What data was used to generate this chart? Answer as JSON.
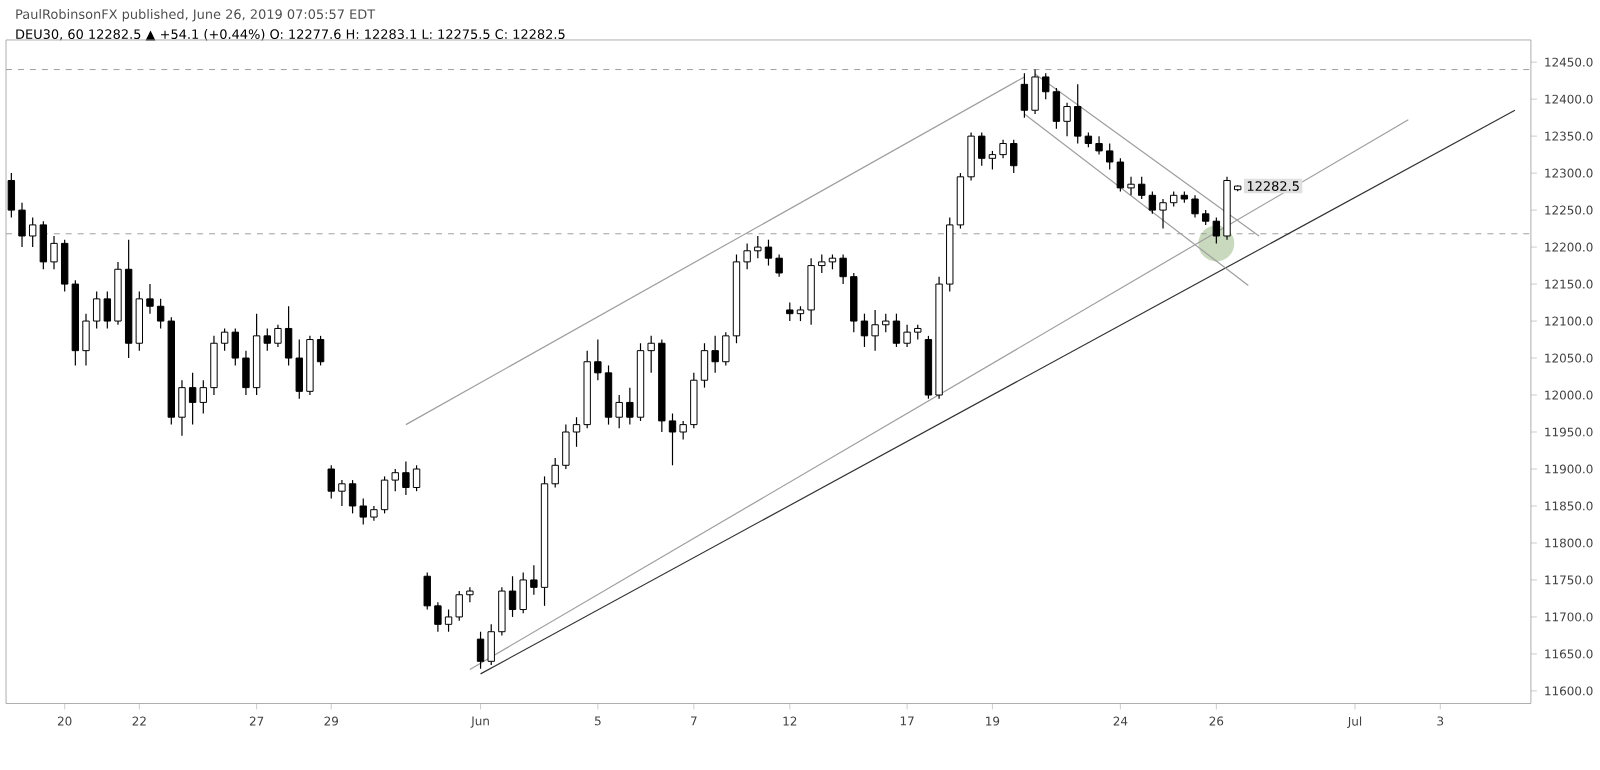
{
  "chart_data": {
    "type": "candlestick",
    "title": "PaulRobinsonFX published, June 26, 2019 07:05:57 EDT",
    "subtitle": "DEU30, 60  12282.5 ▲ +54.1 (+0.44%) O: 12277.6 H: 12283.1 L: 12275.5 C: 12282.5",
    "categories": [
      null,
      null,
      null,
      null,
      null,
      "20",
      null,
      null,
      null,
      null,
      null,
      null,
      "22",
      null,
      null,
      null,
      null,
      null,
      null,
      null,
      null,
      null,
      null,
      "27",
      null,
      null,
      null,
      null,
      null,
      null,
      "29",
      null,
      null,
      null,
      null,
      null,
      null,
      null,
      null,
      null,
      null,
      null,
      null,
      null,
      "Jun",
      null,
      null,
      null,
      null,
      null,
      null,
      null,
      null,
      null,
      null,
      "5",
      null,
      null,
      null,
      null,
      null,
      null,
      null,
      null,
      "7",
      null,
      null,
      null,
      null,
      null,
      null,
      null,
      null,
      "12",
      null,
      null,
      null,
      null,
      null,
      null,
      null,
      null,
      null,
      null,
      "17",
      null,
      null,
      null,
      null,
      null,
      null,
      null,
      "19",
      null,
      null,
      null,
      null,
      null,
      null,
      null,
      null,
      null,
      null,
      null,
      "24",
      null,
      null,
      null,
      null,
      null,
      null,
      null,
      null,
      "26",
      null,
      null,
      null,
      null,
      null,
      null,
      null,
      null,
      null,
      null,
      null,
      null,
      "Jul",
      null,
      null,
      null,
      null,
      null,
      null,
      null,
      "3",
      null,
      null,
      null,
      null,
      null,
      null,
      null,
      null
    ],
    "ohlc": [
      [
        12290,
        12300,
        12240,
        12250
      ],
      [
        12250,
        12260,
        12200,
        12215
      ],
      [
        12215,
        12240,
        12200,
        12230
      ],
      [
        12230,
        12235,
        12170,
        12180
      ],
      [
        12180,
        12215,
        12170,
        12205
      ],
      [
        12205,
        12210,
        12140,
        12150
      ],
      [
        12150,
        12155,
        12040,
        12060
      ],
      [
        12060,
        12110,
        12040,
        12100
      ],
      [
        12100,
        12140,
        12090,
        12130
      ],
      [
        12130,
        12140,
        12090,
        12100
      ],
      [
        12100,
        12180,
        12095,
        12170
      ],
      [
        12170,
        12210,
        12050,
        12070
      ],
      [
        12070,
        12140,
        12060,
        12130
      ],
      [
        12130,
        12150,
        12110,
        12120
      ],
      [
        12120,
        12130,
        12090,
        12100
      ],
      [
        12100,
        12105,
        11960,
        11970
      ],
      [
        11970,
        12020,
        11945,
        12010
      ],
      [
        12010,
        12030,
        11960,
        11990
      ],
      [
        11990,
        12020,
        11975,
        12010
      ],
      [
        12010,
        12080,
        12000,
        12070
      ],
      [
        12070,
        12090,
        12060,
        12085
      ],
      [
        12085,
        12090,
        12040,
        12050
      ],
      [
        12050,
        12060,
        12000,
        12010
      ],
      [
        12010,
        12110,
        12000,
        12080
      ],
      [
        12080,
        12090,
        12060,
        12070
      ],
      [
        12070,
        12095,
        12065,
        12090
      ],
      [
        12090,
        12120,
        12040,
        12050
      ],
      [
        12050,
        12075,
        11995,
        12005
      ],
      [
        12005,
        12080,
        12000,
        12075
      ],
      [
        12075,
        12080,
        12040,
        12045
      ],
      [
        11900,
        11905,
        11860,
        11870
      ],
      [
        11870,
        11885,
        11850,
        11880
      ],
      [
        11880,
        11885,
        11840,
        11850
      ],
      [
        11850,
        11860,
        11825,
        11835
      ],
      [
        11835,
        11850,
        11830,
        11845
      ],
      [
        11845,
        11890,
        11840,
        11885
      ],
      [
        11885,
        11900,
        11870,
        11895
      ],
      [
        11895,
        11910,
        11865,
        11875
      ],
      [
        11875,
        11905,
        11870,
        11900
      ],
      [
        11755,
        11760,
        11710,
        11715
      ],
      [
        11715,
        11720,
        11680,
        11690
      ],
      [
        11690,
        11710,
        11680,
        11700
      ],
      [
        11700,
        11735,
        11695,
        11730
      ],
      [
        11730,
        11740,
        11720,
        11735
      ],
      [
        11670,
        11680,
        11630,
        11640
      ],
      [
        11640,
        11690,
        11635,
        11680
      ],
      [
        11680,
        11740,
        11675,
        11735
      ],
      [
        11735,
        11755,
        11700,
        11710
      ],
      [
        11710,
        11760,
        11705,
        11750
      ],
      [
        11750,
        11770,
        11730,
        11740
      ],
      [
        11740,
        11890,
        11715,
        11880
      ],
      [
        11880,
        11915,
        11875,
        11905
      ],
      [
        11905,
        11960,
        11900,
        11950
      ],
      [
        11950,
        11970,
        11930,
        11960
      ],
      [
        11960,
        12060,
        11955,
        12045
      ],
      [
        12045,
        12075,
        12020,
        12030
      ],
      [
        12030,
        12040,
        11960,
        11970
      ],
      [
        11970,
        12000,
        11955,
        11990
      ],
      [
        11990,
        12010,
        11960,
        11970
      ],
      [
        11970,
        12070,
        11965,
        12060
      ],
      [
        12060,
        12080,
        12030,
        12070
      ],
      [
        12070,
        12075,
        11950,
        11965
      ],
      [
        11965,
        11975,
        11905,
        11950
      ],
      [
        11950,
        11965,
        11940,
        11960
      ],
      [
        11960,
        12030,
        11955,
        12020
      ],
      [
        12020,
        12070,
        12010,
        12060
      ],
      [
        12060,
        12080,
        12030,
        12045
      ],
      [
        12045,
        12085,
        12040,
        12080
      ],
      [
        12080,
        12190,
        12070,
        12180
      ],
      [
        12180,
        12205,
        12170,
        12195
      ],
      [
        12195,
        12215,
        12185,
        12200
      ],
      [
        12200,
        12210,
        12175,
        12185
      ],
      [
        12185,
        12190,
        12160,
        12165
      ],
      [
        12115,
        12125,
        12100,
        12110
      ],
      [
        12110,
        12120,
        12100,
        12115
      ],
      [
        12115,
        12185,
        12095,
        12175
      ],
      [
        12175,
        12190,
        12165,
        12180
      ],
      [
        12180,
        12190,
        12170,
        12185
      ],
      [
        12185,
        12190,
        12150,
        12160
      ],
      [
        12160,
        12165,
        12085,
        12100
      ],
      [
        12100,
        12110,
        12065,
        12080
      ],
      [
        12080,
        12115,
        12060,
        12095
      ],
      [
        12095,
        12110,
        12085,
        12100
      ],
      [
        12100,
        12110,
        12065,
        12070
      ],
      [
        12070,
        12095,
        12065,
        12085
      ],
      [
        12085,
        12095,
        12075,
        12090
      ],
      [
        12075,
        12080,
        11995,
        12000
      ],
      [
        12000,
        12160,
        11995,
        12150
      ],
      [
        12150,
        12240,
        12140,
        12230
      ],
      [
        12230,
        12300,
        12225,
        12295
      ],
      [
        12295,
        12355,
        12290,
        12350
      ],
      [
        12350,
        12355,
        12310,
        12320
      ],
      [
        12320,
        12330,
        12305,
        12325
      ],
      [
        12325,
        12345,
        12320,
        12340
      ],
      [
        12340,
        12345,
        12300,
        12310
      ],
      [
        12420,
        12435,
        12375,
        12385
      ],
      [
        12385,
        12440,
        12380,
        12430
      ],
      [
        12430,
        12435,
        12400,
        12410
      ],
      [
        12410,
        12415,
        12360,
        12370
      ],
      [
        12370,
        12395,
        12350,
        12390
      ],
      [
        12390,
        12420,
        12340,
        12350
      ],
      [
        12350,
        12355,
        12335,
        12340
      ],
      [
        12340,
        12350,
        12325,
        12330
      ],
      [
        12330,
        12340,
        12305,
        12315
      ],
      [
        12315,
        12320,
        12275,
        12280
      ],
      [
        12280,
        12295,
        12270,
        12285
      ],
      [
        12285,
        12295,
        12265,
        12270
      ],
      [
        12270,
        12275,
        12245,
        12250
      ],
      [
        12250,
        12265,
        12225,
        12260
      ],
      [
        12260,
        12275,
        12255,
        12270
      ],
      [
        12270,
        12275,
        12260,
        12265
      ],
      [
        12265,
        12270,
        12240,
        12245
      ],
      [
        12245,
        12250,
        12230,
        12235
      ],
      [
        12235,
        12240,
        12205,
        12215
      ],
      [
        12215,
        12295,
        12210,
        12290
      ],
      [
        12277.6,
        12283.1,
        12275.5,
        12282.5
      ],
      null,
      null,
      null,
      null,
      null,
      null,
      null,
      null,
      null,
      null,
      null,
      null,
      null,
      null,
      null,
      null,
      null,
      null,
      null,
      null,
      null,
      null,
      null,
      null,
      null,
      null,
      null
    ],
    "color": "#000000",
    "series": [
      {
        "type": "line",
        "color": "#9e9e9e",
        "values": [
          null,
          null,
          null,
          null,
          null,
          null,
          null,
          null,
          null,
          null,
          null,
          null,
          null,
          null,
          null,
          null,
          null,
          null,
          null,
          null,
          null,
          null,
          null,
          null,
          null,
          null,
          null,
          null,
          null,
          null,
          null,
          null,
          null,
          null,
          null,
          null,
          null,
          11960,
          null,
          null,
          null,
          null,
          null,
          null,
          null,
          null,
          null,
          null,
          null,
          null,
          null,
          null,
          null,
          null,
          null,
          null,
          null,
          null,
          null,
          null,
          null,
          null,
          null,
          null,
          null,
          null,
          null,
          null,
          null,
          null,
          null,
          null,
          null,
          null,
          null,
          null,
          null,
          null,
          null,
          null,
          null,
          null,
          null,
          null,
          null,
          null,
          null,
          null,
          null,
          null,
          null,
          null,
          null,
          null,
          null,
          12430,
          null,
          null,
          null,
          null,
          null,
          null,
          null,
          null,
          null,
          null,
          null,
          null,
          null,
          null,
          null,
          null,
          null,
          null,
          null,
          null,
          null,
          null,
          null,
          null,
          null,
          null,
          null,
          null,
          null,
          null,
          null,
          null,
          null,
          null,
          null,
          null,
          null,
          null,
          null,
          null,
          null,
          null,
          null,
          null,
          null,
          null,
          null
        ]
      },
      {
        "type": "line",
        "color": "#333333",
        "values": [
          null,
          null,
          null,
          null,
          null,
          null,
          null,
          null,
          null,
          null,
          null,
          null,
          null,
          null,
          null,
          null,
          null,
          null,
          null,
          null,
          null,
          null,
          null,
          null,
          null,
          null,
          null,
          null,
          null,
          null,
          null,
          null,
          null,
          null,
          null,
          null,
          null,
          null,
          null,
          null,
          null,
          null,
          null,
          null,
          11623,
          null,
          null,
          null,
          null,
          null,
          null,
          null,
          null,
          null,
          null,
          null,
          null,
          null,
          null,
          null,
          null,
          null,
          null,
          null,
          null,
          null,
          null,
          null,
          null,
          null,
          null,
          null,
          null,
          null,
          null,
          null,
          null,
          null,
          null,
          null,
          null,
          null,
          null,
          null,
          null,
          null,
          null,
          null,
          null,
          null,
          null,
          null,
          null,
          null,
          null,
          null,
          null,
          null,
          null,
          null,
          null,
          null,
          null,
          null,
          null,
          null,
          null,
          null,
          null,
          null,
          null,
          null,
          null,
          null,
          null,
          null,
          null,
          null,
          null,
          null,
          null,
          null,
          null,
          null,
          null,
          null,
          null,
          null,
          null,
          null,
          null,
          null,
          null,
          null,
          null,
          null,
          null,
          null,
          null,
          null,
          null,
          12385,
          null
        ]
      },
      {
        "type": "line",
        "color": "#9e9e9e",
        "values": [
          null,
          null,
          null,
          null,
          null,
          null,
          null,
          null,
          null,
          null,
          null,
          null,
          null,
          null,
          null,
          null,
          null,
          null,
          null,
          null,
          null,
          null,
          null,
          null,
          null,
          null,
          null,
          null,
          null,
          null,
          null,
          null,
          null,
          null,
          null,
          null,
          null,
          null,
          null,
          null,
          null,
          null,
          null,
          11629,
          null,
          null,
          null,
          null,
          null,
          null,
          null,
          null,
          null,
          null,
          null,
          null,
          null,
          null,
          null,
          null,
          null,
          null,
          null,
          null,
          null,
          null,
          null,
          null,
          null,
          null,
          null,
          null,
          null,
          null,
          null,
          null,
          null,
          null,
          null,
          null,
          null,
          null,
          null,
          null,
          null,
          null,
          null,
          null,
          null,
          null,
          null,
          null,
          null,
          null,
          null,
          null,
          null,
          null,
          null,
          null,
          null,
          null,
          null,
          null,
          null,
          null,
          null,
          null,
          null,
          null,
          null,
          null,
          null,
          null,
          null,
          null,
          null,
          null,
          null,
          null,
          null,
          null,
          null,
          null,
          null,
          null,
          null,
          null,
          null,
          null,
          null,
          12372,
          null,
          null,
          null,
          null,
          null,
          null,
          null,
          null,
          null,
          null,
          null
        ]
      },
      {
        "type": "line",
        "color": "#9e9e9e",
        "values": [
          null,
          null,
          null,
          null,
          null,
          null,
          null,
          null,
          null,
          null,
          null,
          null,
          null,
          null,
          null,
          null,
          null,
          null,
          null,
          null,
          null,
          null,
          null,
          null,
          null,
          null,
          null,
          null,
          null,
          null,
          null,
          null,
          null,
          null,
          null,
          null,
          null,
          null,
          null,
          null,
          null,
          null,
          null,
          null,
          null,
          null,
          null,
          null,
          null,
          null,
          null,
          null,
          null,
          null,
          null,
          null,
          null,
          null,
          null,
          null,
          null,
          null,
          null,
          null,
          null,
          null,
          null,
          null,
          null,
          null,
          null,
          null,
          null,
          null,
          null,
          null,
          null,
          null,
          null,
          null,
          null,
          null,
          null,
          null,
          null,
          null,
          null,
          null,
          null,
          null,
          null,
          null,
          null,
          null,
          null,
          null,
          12434,
          null,
          null,
          null,
          null,
          null,
          null,
          null,
          null,
          null,
          null,
          null,
          null,
          null,
          null,
          null,
          null,
          null,
          null,
          null,
          null,
          12215,
          null,
          null,
          null,
          null,
          null,
          null,
          null,
          null,
          null,
          null,
          null,
          null,
          null,
          null,
          null,
          null,
          null,
          null,
          null,
          null,
          null,
          null,
          null,
          null,
          null
        ]
      },
      {
        "type": "line",
        "color": "#9e9e9e",
        "values": [
          null,
          null,
          null,
          null,
          null,
          null,
          null,
          null,
          null,
          null,
          null,
          null,
          null,
          null,
          null,
          null,
          null,
          null,
          null,
          null,
          null,
          null,
          null,
          null,
          null,
          null,
          null,
          null,
          null,
          null,
          null,
          null,
          null,
          null,
          null,
          null,
          null,
          null,
          null,
          null,
          null,
          null,
          null,
          null,
          null,
          null,
          null,
          null,
          null,
          null,
          null,
          null,
          null,
          null,
          null,
          null,
          null,
          null,
          null,
          null,
          null,
          null,
          null,
          null,
          null,
          null,
          null,
          null,
          null,
          null,
          null,
          null,
          null,
          null,
          null,
          null,
          null,
          null,
          null,
          null,
          null,
          null,
          null,
          null,
          null,
          null,
          null,
          null,
          null,
          null,
          null,
          null,
          null,
          null,
          null,
          12380,
          null,
          null,
          null,
          null,
          null,
          null,
          null,
          null,
          null,
          null,
          null,
          null,
          null,
          null,
          null,
          null,
          null,
          null,
          null,
          null,
          12148,
          null,
          null,
          null,
          null,
          null,
          null,
          null,
          null,
          null,
          null,
          null,
          null,
          null,
          null,
          null,
          null,
          null,
          null,
          null,
          null,
          null,
          null,
          null,
          null,
          null,
          null
        ]
      }
    ],
    "ref_lines": [
      {
        "axis": "y",
        "value": 12440,
        "color": "#9e9e9e",
        "line_style": "dashed"
      },
      {
        "axis": "y",
        "value": 12218,
        "color": "#9e9e9e",
        "line_style": "dashed"
      }
    ],
    "annotations": [
      "12282.5"
    ],
    "ylim": [
      11583,
      12480
    ],
    "yticks": [
      {
        "value": 11600,
        "label": "11600.0"
      },
      {
        "value": 11650,
        "label": "11650.0"
      },
      {
        "value": 11700,
        "label": "11700.0"
      },
      {
        "value": 11750,
        "label": "11750.0"
      },
      {
        "value": 11800,
        "label": "11800.0"
      },
      {
        "value": 11850,
        "label": "11850.0"
      },
      {
        "value": 11900,
        "label": "11900.0"
      },
      {
        "value": 11950,
        "label": "11950.0"
      },
      {
        "value": 12000,
        "label": "12000.0"
      },
      {
        "value": 12050,
        "label": "12050.0"
      },
      {
        "value": 12100,
        "label": "12100.0"
      },
      {
        "value": 12150,
        "label": "12150.0"
      },
      {
        "value": 12200,
        "label": "12200.0"
      },
      {
        "value": 12250,
        "label": "12250.0"
      },
      {
        "value": 12300,
        "label": "12300.0"
      },
      {
        "value": 12350,
        "label": "12350.0"
      },
      {
        "value": 12400,
        "label": "12400.0"
      },
      {
        "value": 12450,
        "label": "12450.0"
      }
    ]
  }
}
